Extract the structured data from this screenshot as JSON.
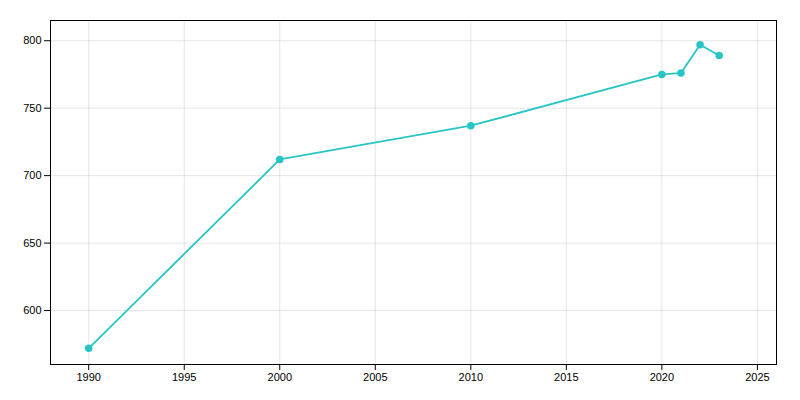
{
  "chart_data": {
    "type": "line",
    "x": [
      1990,
      2000,
      2010,
      2020,
      2021,
      2022,
      2023
    ],
    "values": [
      572,
      712,
      737,
      775,
      776,
      797,
      789
    ],
    "color": "#29c4c4",
    "marker": "circle",
    "xlim": [
      1988,
      2026
    ],
    "ylim": [
      560,
      815
    ],
    "xticks": [
      1990,
      1995,
      2000,
      2005,
      2010,
      2015,
      2020,
      2025
    ],
    "yticks": [
      600,
      650,
      700,
      750,
      800
    ],
    "grid": true
  }
}
